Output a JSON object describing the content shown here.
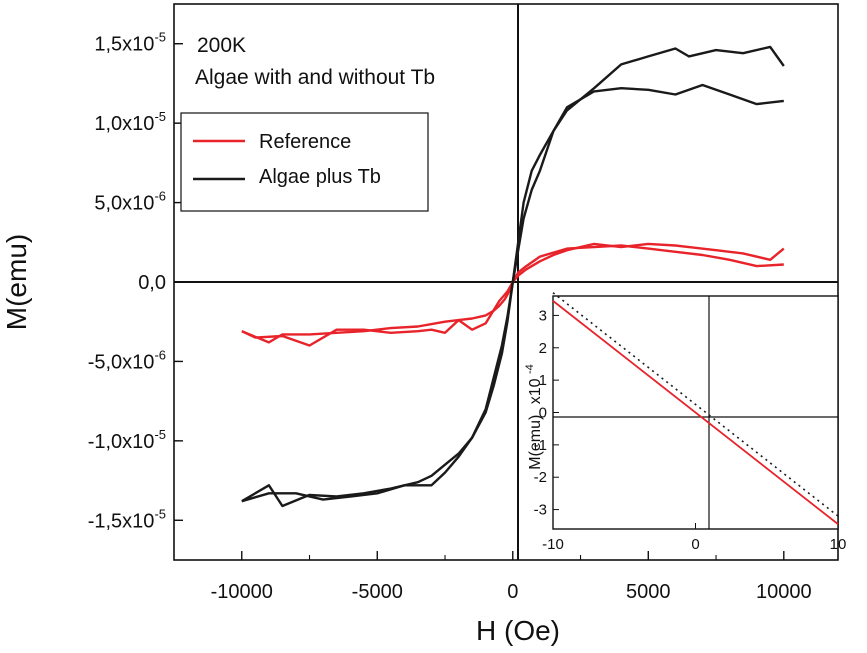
{
  "chart_data": {
    "type": "line",
    "annotations": [
      "200K",
      "Algae with and without Tb"
    ],
    "xlabel": "H (Oe)",
    "ylabel": "M(emu)",
    "xlim": [
      -12500,
      12000
    ],
    "ylim": [
      -1.75e-05,
      1.75e-05
    ],
    "xticks": [
      -10000,
      -5000,
      0,
      5000,
      10000
    ],
    "xtick_labels": [
      "-10000",
      "-5000",
      "0",
      "5000",
      "10000"
    ],
    "yticks": [
      1.5e-05,
      1e-05,
      5e-06,
      0,
      -5e-06,
      -1e-05,
      -1.5e-05
    ],
    "ytick_labels": [
      {
        "mantissa": "1,5x10",
        "exp": "-5"
      },
      {
        "mantissa": "1,0x10",
        "exp": "-5"
      },
      {
        "mantissa": "5,0x10",
        "exp": "-6"
      },
      {
        "mantissa": "0,0",
        "exp": ""
      },
      {
        "mantissa": "-5,0x10",
        "exp": "-6"
      },
      {
        "mantissa": "-1,0x10",
        "exp": "-5"
      },
      {
        "mantissa": "-1,5x10",
        "exp": "-5"
      }
    ],
    "legend_position": "upper-left",
    "grid": false,
    "series": [
      {
        "name": "Reference",
        "color": "#e8232a",
        "branches": [
          {
            "x": [
              -10000,
              -9000,
              -8500,
              -7500,
              -6500,
              -5500,
              -4500,
              -3500,
              -2500,
              -2000,
              -1500,
              -1000,
              -700,
              -500,
              -300,
              -100,
              0,
              200,
              500,
              1000,
              2000,
              3000,
              4000,
              5000,
              6000,
              7000,
              8000,
              9000,
              10000
            ],
            "y": [
              -3.1e-06,
              -3.8e-06,
              -3.3e-06,
              -3.3e-06,
              -3.2e-06,
              -3.1e-06,
              -2.9e-06,
              -2.8e-06,
              -2.5e-06,
              -2.4e-06,
              -2.3e-06,
              -2.1e-06,
              -1.8e-06,
              -1.5e-06,
              -1.1e-06,
              -5e-07,
              0,
              6e-07,
              1e-06,
              1.6e-06,
              2.1e-06,
              2.2e-06,
              2.3e-06,
              2.1e-06,
              1.9e-06,
              1.7e-06,
              1.4e-06,
              1e-06,
              1.1e-06
            ]
          },
          {
            "x": [
              10000,
              9500,
              8500,
              7500,
              6500,
              6000,
              5000,
              4000,
              3000,
              2000,
              1500,
              1000,
              500,
              200,
              0,
              -200,
              -500,
              -1000,
              -1500,
              -2000,
              -2500,
              -3000,
              -3500,
              -4500,
              -5500,
              -6500,
              -7500,
              -8500,
              -9500,
              -10000
            ],
            "y": [
              2.1e-06,
              1.4e-06,
              1.8e-06,
              2e-06,
              2.2e-06,
              2.3e-06,
              2.4e-06,
              2.2e-06,
              2.4e-06,
              2e-06,
              1.7e-06,
              1.3e-06,
              8e-07,
              4e-07,
              0,
              -6e-07,
              -1.2e-06,
              -2.6e-06,
              -3e-06,
              -2.4e-06,
              -3.2e-06,
              -3e-06,
              -3.1e-06,
              -3.2e-06,
              -3e-06,
              -3e-06,
              -4e-06,
              -3.4e-06,
              -3.5e-06,
              -3.1e-06
            ]
          }
        ]
      },
      {
        "name": "Algae plus Tb",
        "color": "#1a1a1a",
        "branches": [
          {
            "x": [
              -10000,
              -9000,
              -8500,
              -7500,
              -6500,
              -5500,
              -4500,
              -3500,
              -3000,
              -2500,
              -2000,
              -1500,
              -1000,
              -700,
              -400,
              -200,
              0,
              200,
              400,
              700,
              1000,
              1500,
              2000,
              3000,
              4000,
              5000,
              6000,
              7000,
              8000,
              9000,
              10000
            ],
            "y": [
              -1.38e-05,
              -1.28e-05,
              -1.41e-05,
              -1.34e-05,
              -1.35e-05,
              -1.33e-05,
              -1.3e-05,
              -1.26e-05,
              -1.22e-05,
              -1.15e-05,
              -1.08e-05,
              -9.8e-06,
              -8e-06,
              -6e-06,
              -4e-06,
              -2.2e-06,
              0,
              2.5e-06,
              5e-06,
              7e-06,
              8e-06,
              9.5e-06,
              1.1e-05,
              1.2e-05,
              1.22e-05,
              1.21e-05,
              1.18e-05,
              1.24e-05,
              1.18e-05,
              1.12e-05,
              1.14e-05
            ]
          },
          {
            "x": [
              10000,
              9500,
              8500,
              7500,
              6500,
              6000,
              5000,
              4000,
              3000,
              2000,
              1500,
              1000,
              700,
              400,
              200,
              0,
              -200,
              -400,
              -700,
              -1000,
              -1500,
              -2000,
              -2500,
              -3000,
              -4000,
              -5000,
              -6000,
              -7000,
              -8000,
              -9000,
              -10000
            ],
            "y": [
              1.36e-05,
              1.48e-05,
              1.44e-05,
              1.46e-05,
              1.42e-05,
              1.47e-05,
              1.42e-05,
              1.37e-05,
              1.22e-05,
              1.08e-05,
              9.5e-06,
              7e-06,
              5.8e-06,
              4e-06,
              2e-06,
              0,
              -2.5e-06,
              -4.5e-06,
              -6.5e-06,
              -8.2e-06,
              -9.8e-06,
              -1.1e-05,
              -1.2e-05,
              -1.28e-05,
              -1.28e-05,
              -1.33e-05,
              -1.35e-05,
              -1.37e-05,
              -1.33e-05,
              -1.33e-05,
              -1.38e-05
            ]
          }
        ]
      }
    ],
    "inset": {
      "type": "line",
      "ylabel": "M(emu)",
      "ylabel_multiplier": {
        "base": "x10",
        "exp": "-4"
      },
      "xlim": [
        -10,
        10
      ],
      "ylim": [
        -3.6,
        3.6
      ],
      "xticks": [
        -10,
        0,
        10
      ],
      "yticks": [
        3,
        2,
        1,
        0,
        -1,
        -2,
        -3
      ],
      "series": [
        {
          "style": "solid",
          "color": "#e8232a",
          "x": [
            -10,
            10
          ],
          "y": [
            3.45,
            -3.45
          ]
        },
        {
          "style": "dotted",
          "color": "#1a1a1a",
          "x": [
            -10,
            10
          ],
          "y": [
            3.7,
            -3.2
          ]
        }
      ]
    }
  }
}
